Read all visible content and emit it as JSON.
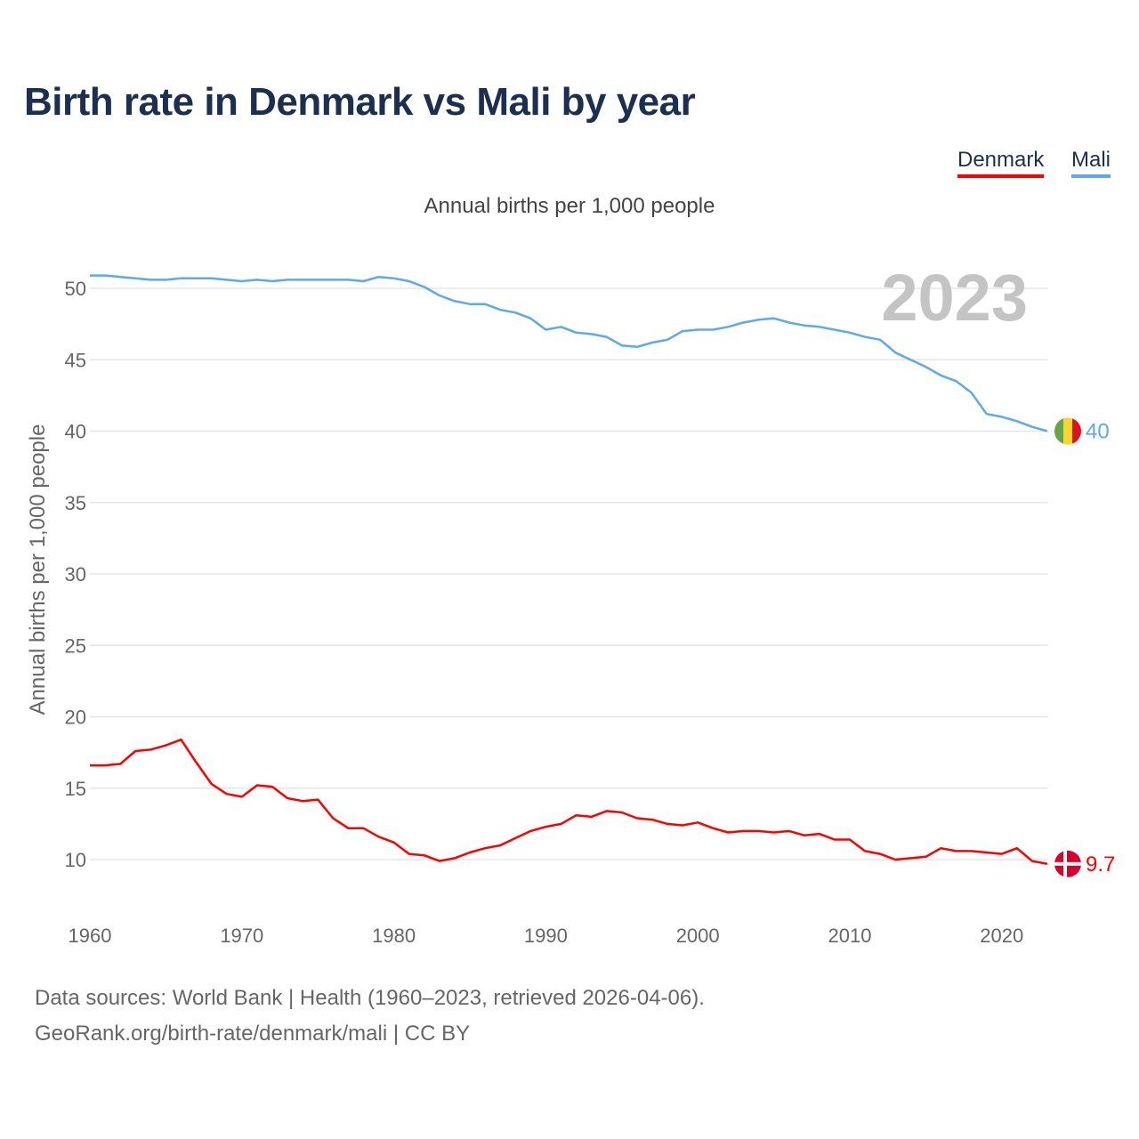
{
  "title": "Birth rate in Denmark vs Mali by year",
  "legend": [
    "Denmark",
    "Mali"
  ],
  "subtitle": "Annual births per 1,000 people",
  "footer": {
    "line1": "Data sources: World Bank | Health (1960–2023, retrieved 2026-04-06).",
    "line2": "GeoRank.org/birth-rate/denmark/mali | CC BY"
  },
  "chart_data": {
    "type": "line",
    "title": "Birth rate in Denmark vs Mali by year",
    "ylabel": "Annual births per 1,000 people",
    "xlabel": "",
    "year_watermark": "2023",
    "xlim": [
      1960,
      2023
    ],
    "ylim": [
      7,
      52
    ],
    "yticks": [
      10,
      15,
      20,
      25,
      30,
      35,
      40,
      45,
      50
    ],
    "xticks": [
      1960,
      1970,
      1980,
      1990,
      2000,
      2010,
      2020
    ],
    "grid": true,
    "legend_position": "top-right",
    "x": [
      1960,
      1961,
      1962,
      1963,
      1964,
      1965,
      1966,
      1967,
      1968,
      1969,
      1970,
      1971,
      1972,
      1973,
      1974,
      1975,
      1976,
      1977,
      1978,
      1979,
      1980,
      1981,
      1982,
      1983,
      1984,
      1985,
      1986,
      1987,
      1988,
      1989,
      1990,
      1991,
      1992,
      1993,
      1994,
      1995,
      1996,
      1997,
      1998,
      1999,
      2000,
      2001,
      2002,
      2003,
      2004,
      2005,
      2006,
      2007,
      2008,
      2009,
      2010,
      2011,
      2012,
      2013,
      2014,
      2015,
      2016,
      2017,
      2018,
      2019,
      2020,
      2021,
      2022,
      2023
    ],
    "series": [
      {
        "name": "Denmark",
        "color": "#ff0000",
        "end_label": "9.7",
        "values": [
          16.6,
          16.6,
          16.7,
          17.6,
          17.7,
          18.0,
          18.4,
          16.8,
          15.3,
          14.6,
          14.4,
          15.2,
          15.1,
          14.3,
          14.1,
          14.2,
          12.9,
          12.2,
          12.2,
          11.6,
          11.2,
          10.4,
          10.3,
          9.9,
          10.1,
          10.5,
          10.8,
          11.0,
          11.5,
          12.0,
          12.3,
          12.5,
          13.1,
          13.0,
          13.4,
          13.3,
          12.9,
          12.8,
          12.5,
          12.4,
          12.6,
          12.2,
          11.9,
          12.0,
          12.0,
          11.9,
          12.0,
          11.7,
          11.8,
          11.4,
          11.4,
          10.6,
          10.4,
          10.0,
          10.1,
          10.2,
          10.8,
          10.6,
          10.6,
          10.5,
          10.4,
          10.8,
          9.9,
          9.7
        ]
      },
      {
        "name": "Mali",
        "color": "#5ea8ee",
        "end_label": "40",
        "values": [
          50.9,
          50.9,
          50.8,
          50.7,
          50.6,
          50.6,
          50.7,
          50.7,
          50.7,
          50.6,
          50.5,
          50.6,
          50.5,
          50.6,
          50.6,
          50.6,
          50.6,
          50.6,
          50.5,
          50.8,
          50.7,
          50.5,
          50.1,
          49.5,
          49.1,
          48.9,
          48.9,
          48.5,
          48.3,
          47.9,
          47.1,
          47.3,
          46.9,
          46.8,
          46.6,
          46.0,
          45.9,
          46.2,
          46.4,
          47.0,
          47.1,
          47.1,
          47.3,
          47.6,
          47.8,
          47.9,
          47.6,
          47.4,
          47.3,
          47.1,
          46.9,
          46.6,
          46.4,
          45.5,
          45.0,
          44.5,
          43.9,
          43.5,
          42.7,
          41.2,
          41.0,
          40.7,
          40.3,
          40.0
        ]
      }
    ]
  }
}
